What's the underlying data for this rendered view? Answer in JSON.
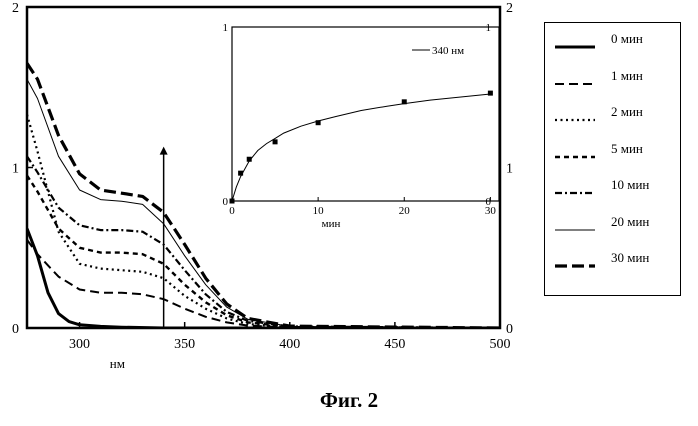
{
  "caption": "Фиг. 2",
  "chart_data": [
    {
      "type": "line",
      "xlabel": "нм",
      "ylabel": "",
      "xlim": [
        275,
        500
      ],
      "ylim": [
        0,
        2
      ],
      "xticks": [
        300,
        350,
        400,
        450,
        500
      ],
      "yticks_left": [
        0,
        1,
        2
      ],
      "yticks_right": [
        0,
        1,
        2
      ],
      "grid": false,
      "legend_position": "right",
      "marker_line_x": 340,
      "marker_arrow_top": 1.13,
      "series": [
        {
          "name": "0 мин",
          "style": "solid-bold",
          "x": [
            275,
            280,
            285,
            290,
            295,
            300,
            310,
            320,
            340,
            360,
            400,
            500
          ],
          "y": [
            0.62,
            0.45,
            0.22,
            0.09,
            0.04,
            0.02,
            0.01,
            0.005,
            0.0,
            0.0,
            0.0,
            0.0
          ]
        },
        {
          "name": "1 мин",
          "style": "dash",
          "x": [
            275,
            280,
            290,
            300,
            310,
            320,
            330,
            340,
            350,
            360,
            370,
            380,
            400,
            500
          ],
          "y": [
            0.55,
            0.46,
            0.32,
            0.24,
            0.22,
            0.22,
            0.21,
            0.18,
            0.12,
            0.07,
            0.035,
            0.015,
            0.003,
            0.0
          ]
        },
        {
          "name": "2 мин",
          "style": "dot",
          "x": [
            275,
            280,
            290,
            300,
            310,
            320,
            330,
            340,
            350,
            360,
            370,
            380,
            400,
            500
          ],
          "y": [
            1.33,
            1.1,
            0.6,
            0.4,
            0.37,
            0.36,
            0.35,
            0.31,
            0.2,
            0.12,
            0.06,
            0.025,
            0.005,
            0.0
          ]
        },
        {
          "name": "5 мин",
          "style": "dash-short",
          "x": [
            275,
            280,
            290,
            300,
            310,
            320,
            330,
            340,
            350,
            360,
            370,
            380,
            400,
            500
          ],
          "y": [
            0.95,
            0.85,
            0.62,
            0.5,
            0.47,
            0.47,
            0.46,
            0.4,
            0.27,
            0.16,
            0.08,
            0.035,
            0.007,
            0.0
          ]
        },
        {
          "name": "10 мин",
          "style": "dash-dot",
          "x": [
            275,
            280,
            290,
            300,
            310,
            320,
            330,
            340,
            350,
            360,
            370,
            380,
            400,
            500
          ],
          "y": [
            1.07,
            0.97,
            0.75,
            0.64,
            0.61,
            0.61,
            0.6,
            0.52,
            0.36,
            0.21,
            0.1,
            0.045,
            0.01,
            0.0
          ]
        },
        {
          "name": "20 мин",
          "style": "solid-thin",
          "x": [
            275,
            280,
            290,
            300,
            310,
            320,
            330,
            340,
            350,
            360,
            370,
            380,
            400,
            500
          ],
          "y": [
            1.55,
            1.43,
            1.07,
            0.86,
            0.8,
            0.79,
            0.77,
            0.65,
            0.45,
            0.27,
            0.13,
            0.055,
            0.01,
            0.0
          ]
        },
        {
          "name": "30 мин",
          "style": "dash-bold",
          "x": [
            275,
            280,
            290,
            300,
            310,
            320,
            330,
            340,
            350,
            360,
            370,
            380,
            400,
            500
          ],
          "y": [
            1.65,
            1.55,
            1.2,
            0.96,
            0.86,
            0.84,
            0.82,
            0.72,
            0.52,
            0.31,
            0.15,
            0.06,
            0.012,
            0.0
          ]
        }
      ]
    },
    {
      "type": "scatter",
      "xlabel": "мин",
      "ylabel": "",
      "xlim": [
        0,
        31
      ],
      "ylim": [
        0,
        1
      ],
      "xticks": [
        0,
        10,
        20,
        30
      ],
      "yticks": [
        0,
        1
      ],
      "grid": false,
      "legend_position": "top-right",
      "series": [
        {
          "name": "340 нм",
          "style": "solid-thin",
          "x": [
            0,
            1,
            2,
            5,
            10,
            20,
            30
          ],
          "y": [
            0.0,
            0.16,
            0.24,
            0.34,
            0.45,
            0.57,
            0.62
          ],
          "fit_x": [
            0,
            0.5,
            1,
            2,
            3,
            4,
            5,
            6,
            8,
            10,
            12,
            15,
            18,
            20,
            23,
            26,
            28,
            30
          ],
          "fit_y": [
            0.0,
            0.08,
            0.14,
            0.23,
            0.29,
            0.33,
            0.36,
            0.39,
            0.43,
            0.46,
            0.485,
            0.52,
            0.545,
            0.56,
            0.58,
            0.595,
            0.605,
            0.615
          ]
        }
      ]
    }
  ]
}
